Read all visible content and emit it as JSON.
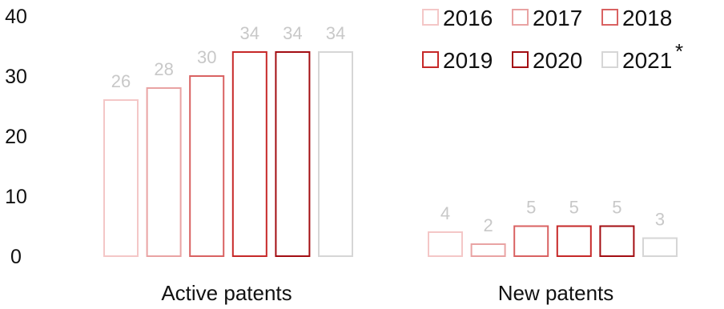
{
  "chart_data": {
    "type": "bar",
    "categories": [
      "Active patents",
      "New patents"
    ],
    "series": [
      {
        "name": "2016",
        "values": [
          26,
          4
        ],
        "color": "#f4c7c7"
      },
      {
        "name": "2017",
        "values": [
          28,
          2
        ],
        "color": "#e9a3a3"
      },
      {
        "name": "2018",
        "values": [
          30,
          5
        ],
        "color": "#d96262"
      },
      {
        "name": "2019",
        "values": [
          34,
          5
        ],
        "color": "#c62828"
      },
      {
        "name": "2020",
        "values": [
          34,
          5
        ],
        "color": "#a30d12"
      },
      {
        "name": "2021",
        "values": [
          34,
          3
        ],
        "color": "#d6d6d6",
        "note": "*"
      }
    ],
    "yticks": [
      "0",
      "10",
      "20",
      "30",
      "40"
    ],
    "ylim": [
      0,
      40
    ],
    "title": "",
    "xlabel": "",
    "ylabel": "",
    "grid": false,
    "legend": "top-right"
  }
}
